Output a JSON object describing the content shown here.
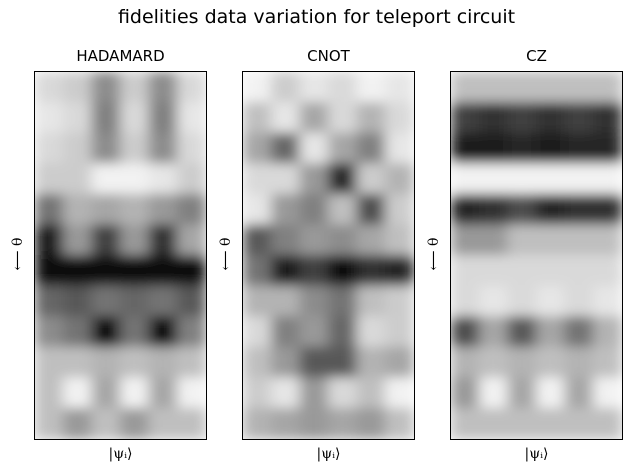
{
  "figure": {
    "title": "fidelities data variation for teleport circuit"
  },
  "chart_data": [
    {
      "type": "heatmap",
      "title": "HADAMARD",
      "xlabel": "|ψᵢ⟩",
      "ylabel": "⟵ θ",
      "colormap": "gray",
      "grid": false,
      "rows": 12,
      "cols": 6,
      "values": [
        [
          0.85,
          0.8,
          0.55,
          0.8,
          0.55,
          0.85
        ],
        [
          0.9,
          0.85,
          0.5,
          0.85,
          0.5,
          0.9
        ],
        [
          0.85,
          0.8,
          0.55,
          0.8,
          0.55,
          0.85
        ],
        [
          0.8,
          0.8,
          0.95,
          0.95,
          0.9,
          0.8
        ],
        [
          0.45,
          0.7,
          0.65,
          0.7,
          0.6,
          0.5
        ],
        [
          0.1,
          0.6,
          0.25,
          0.6,
          0.2,
          0.65
        ],
        [
          0.05,
          0.05,
          0.05,
          0.05,
          0.05,
          0.05
        ],
        [
          0.4,
          0.35,
          0.45,
          0.4,
          0.45,
          0.35
        ],
        [
          0.55,
          0.45,
          0.05,
          0.45,
          0.05,
          0.5
        ],
        [
          0.75,
          0.75,
          0.7,
          0.75,
          0.7,
          0.75
        ],
        [
          0.75,
          0.95,
          0.65,
          0.95,
          0.65,
          0.95
        ],
        [
          0.75,
          0.6,
          0.75,
          0.6,
          0.75,
          0.75
        ]
      ]
    },
    {
      "type": "heatmap",
      "title": "CNOT",
      "xlabel": "|ψᵢ⟩",
      "ylabel": "⟵ θ",
      "colormap": "gray",
      "grid": false,
      "rows": 12,
      "cols": 6,
      "values": [
        [
          0.95,
          0.8,
          0.9,
          0.85,
          0.95,
          0.9
        ],
        [
          0.75,
          0.9,
          0.65,
          0.85,
          0.7,
          0.85
        ],
        [
          0.65,
          0.4,
          0.9,
          0.65,
          0.5,
          0.9
        ],
        [
          0.85,
          0.85,
          0.6,
          0.15,
          0.8,
          0.7
        ],
        [
          0.9,
          0.6,
          0.5,
          0.75,
          0.3,
          0.8
        ],
        [
          0.35,
          0.5,
          0.6,
          0.55,
          0.65,
          0.75
        ],
        [
          0.45,
          0.1,
          0.25,
          0.05,
          0.2,
          0.15
        ],
        [
          0.7,
          0.7,
          0.55,
          0.45,
          0.75,
          0.8
        ],
        [
          0.85,
          0.5,
          0.6,
          0.4,
          0.85,
          0.8
        ],
        [
          0.75,
          0.6,
          0.35,
          0.35,
          0.7,
          0.65
        ],
        [
          0.8,
          0.9,
          0.6,
          0.85,
          0.75,
          0.95
        ],
        [
          0.7,
          0.65,
          0.6,
          0.65,
          0.6,
          0.75
        ]
      ]
    },
    {
      "type": "heatmap",
      "title": "CZ",
      "xlabel": "|ψᵢ⟩",
      "ylabel": "⟵ θ",
      "colormap": "gray",
      "grid": false,
      "rows": 12,
      "cols": 6,
      "values": [
        [
          0.75,
          0.75,
          0.75,
          0.75,
          0.75,
          0.75
        ],
        [
          0.25,
          0.2,
          0.25,
          0.2,
          0.25,
          0.2
        ],
        [
          0.1,
          0.1,
          0.15,
          0.1,
          0.15,
          0.15
        ],
        [
          0.95,
          0.95,
          0.95,
          0.95,
          0.95,
          0.95
        ],
        [
          0.15,
          0.2,
          0.3,
          0.15,
          0.2,
          0.2
        ],
        [
          0.6,
          0.6,
          0.75,
          0.75,
          0.75,
          0.75
        ],
        [
          0.85,
          0.85,
          0.85,
          0.85,
          0.85,
          0.85
        ],
        [
          0.85,
          0.9,
          0.85,
          0.9,
          0.85,
          0.9
        ],
        [
          0.3,
          0.65,
          0.35,
          0.65,
          0.45,
          0.7
        ],
        [
          0.7,
          0.75,
          0.7,
          0.75,
          0.7,
          0.75
        ],
        [
          0.6,
          0.95,
          0.65,
          0.95,
          0.65,
          0.95
        ],
        [
          0.75,
          0.75,
          0.75,
          0.75,
          0.75,
          0.75
        ]
      ]
    }
  ]
}
